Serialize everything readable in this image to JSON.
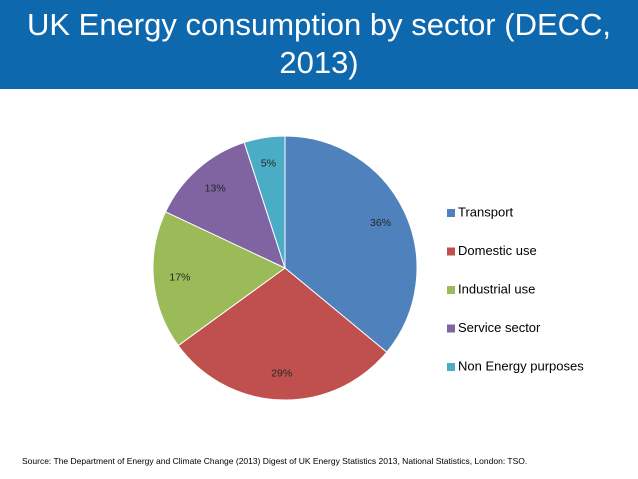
{
  "slide": {
    "title": "UK Energy consumption by sector (DECC, 2013)",
    "source": "Source: The Department of Energy and Climate Change (2013) Digest of UK Energy Statistics 2013, National Statistics, London: TSO."
  },
  "colors": {
    "title_bar": "#0e68ad",
    "title_text": "#ffffff"
  },
  "chart_data": {
    "type": "pie",
    "title": "UK Energy consumption by sector (DECC, 2013)",
    "categories": [
      "Transport",
      "Domestic use",
      "Industrial use",
      "Service sector",
      "Non Energy purposes"
    ],
    "values": [
      36,
      29,
      17,
      13,
      5
    ],
    "labels": [
      "36%",
      "29%",
      "17%",
      "13%",
      "5%"
    ],
    "colors": [
      "#4f81bd",
      "#c0504d",
      "#9bbb59",
      "#8064a2",
      "#4bacc6"
    ],
    "legend_position": "right",
    "start": "top",
    "direction": "clockwise"
  }
}
